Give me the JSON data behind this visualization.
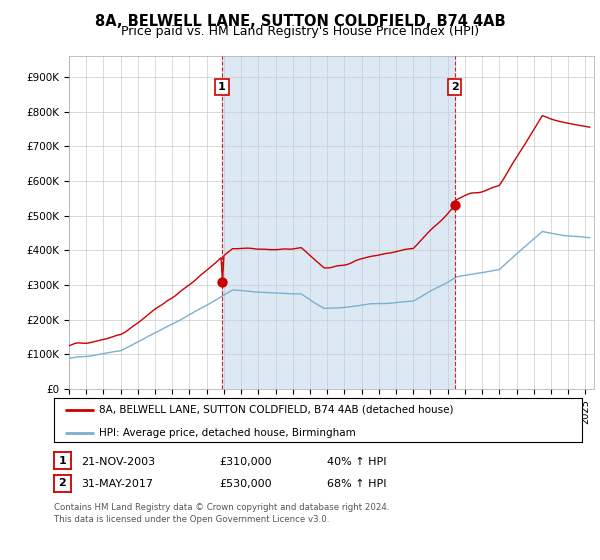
{
  "title": "8A, BELWELL LANE, SUTTON COLDFIELD, B74 4AB",
  "subtitle": "Price paid vs. HM Land Registry's House Price Index (HPI)",
  "ylabel_ticks": [
    "£0",
    "£100K",
    "£200K",
    "£300K",
    "£400K",
    "£500K",
    "£600K",
    "£700K",
    "£800K",
    "£900K"
  ],
  "ytick_values": [
    0,
    100000,
    200000,
    300000,
    400000,
    500000,
    600000,
    700000,
    800000,
    900000
  ],
  "ylim": [
    0,
    960000
  ],
  "xlim_start": 1995.0,
  "xlim_end": 2025.5,
  "sale1_date": 2003.88,
  "sale1_price": 310000,
  "sale2_date": 2017.41,
  "sale2_price": 530000,
  "shading_color": "#dce9f5",
  "red_line_color": "#cc0000",
  "blue_line_color": "#7ab0d4",
  "dashed_color": "#cc0000",
  "marker_color": "#cc0000",
  "legend_label1": "8A, BELWELL LANE, SUTTON COLDFIELD, B74 4AB (detached house)",
  "legend_label2": "HPI: Average price, detached house, Birmingham",
  "footnote1": "Contains HM Land Registry data © Crown copyright and database right 2024.",
  "footnote2": "This data is licensed under the Open Government Licence v3.0.",
  "table_row1_num": "1",
  "table_row1_date": "21-NOV-2003",
  "table_row1_price": "£310,000",
  "table_row1_hpi": "40% ↑ HPI",
  "table_row2_num": "2",
  "table_row2_date": "31-MAY-2017",
  "table_row2_price": "£530,000",
  "table_row2_hpi": "68% ↑ HPI"
}
